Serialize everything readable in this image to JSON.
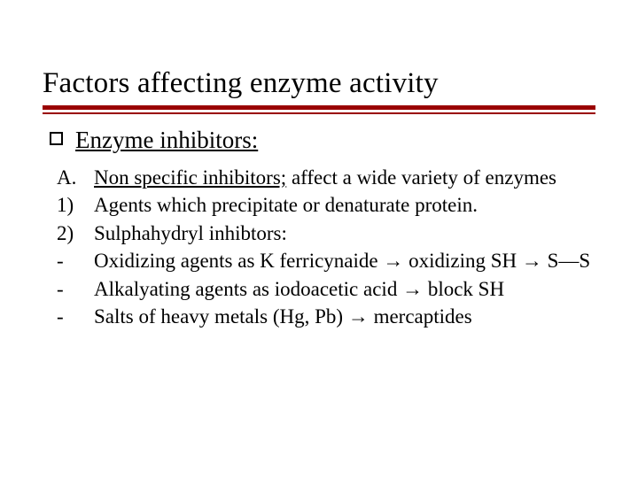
{
  "colors": {
    "accent": "#9a0101",
    "text": "#000000",
    "background": "#ffffff"
  },
  "typography": {
    "title_fontsize_pt": 25,
    "section_fontsize_pt": 20,
    "body_fontsize_pt": 17,
    "font_family": "Times New Roman"
  },
  "title": "Factors affecting enzyme activity",
  "section": {
    "heading": "Enzyme inhibitors:"
  },
  "items": [
    {
      "marker": "A.",
      "text_underlined": "Non specific inhibitors;",
      "text_rest": " affect a wide variety of enzymes"
    },
    {
      "marker": "1)",
      "text": "Agents which precipitate or denaturate protein."
    },
    {
      "marker": "2)",
      "text": "Sulphahydryl inhibtors:"
    },
    {
      "marker": "-",
      "text": "Oxidizing agents as K ferricynaide → oxidizing SH → S—S"
    },
    {
      "marker": "-",
      "text": "Alkalyating agents as iodoacetic acid → block SH"
    },
    {
      "marker": "-",
      "text": "Salts of heavy metals (Hg, Pb) → mercaptides"
    }
  ]
}
